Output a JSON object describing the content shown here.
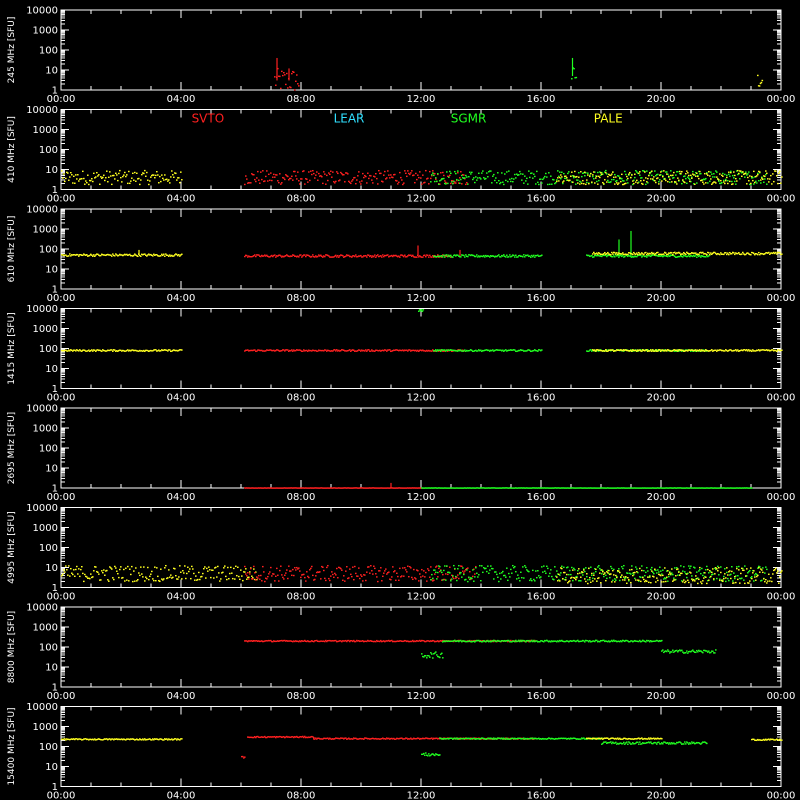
{
  "chart_data": {
    "type": "scatter",
    "x_ticks": [
      "00:00",
      "04:00",
      "08:00",
      "12:00",
      "16:00",
      "20:00",
      "00:00"
    ],
    "y_ticks": [
      "1",
      "10",
      "100",
      "1000",
      "10000"
    ],
    "unit_label": "[SFU]",
    "legend": [
      {
        "name": "SVTO",
        "color": "#ff2020"
      },
      {
        "name": "LEAR",
        "color": "#30e0ff"
      },
      {
        "name": "SGMR",
        "color": "#20ff20"
      },
      {
        "name": "PALE",
        "color": "#ffff20"
      }
    ],
    "panels": [
      {
        "freq_label": "245 MHz",
        "segments": [
          {
            "station": "SVTO",
            "from": 7.1,
            "to": 7.9,
            "level": 3,
            "noise": 0.6,
            "spikes": [
              [
                7.2,
                40
              ],
              [
                7.6,
                12
              ]
            ]
          },
          {
            "station": "SGMR",
            "from": 17.0,
            "to": 17.15,
            "level": 5,
            "noise": 0.5,
            "spikes": [
              [
                17.05,
                40
              ]
            ]
          },
          {
            "station": "PALE",
            "from": 23.2,
            "to": 23.35,
            "level": 3,
            "noise": 0.4,
            "spikes": []
          }
        ]
      },
      {
        "freq_label": "410 MHz",
        "segments": [
          {
            "station": "PALE",
            "from": 0.0,
            "to": 4.0,
            "level": 4,
            "noise": 0.35,
            "spikes": []
          },
          {
            "station": "SVTO",
            "from": 6.1,
            "to": 13.5,
            "level": 4,
            "noise": 0.35,
            "spikes": []
          },
          {
            "station": "SGMR",
            "from": 12.3,
            "to": 23.5,
            "level": 4,
            "noise": 0.35,
            "spikes": []
          },
          {
            "station": "PALE",
            "from": 16.5,
            "to": 24.0,
            "level": 4,
            "noise": 0.35,
            "spikes": []
          }
        ]
      },
      {
        "freq_label": "610 MHz",
        "segments": [
          {
            "station": "PALE",
            "from": 0.0,
            "to": 4.0,
            "level": 50,
            "noise": 0.06,
            "spikes": [
              [
                2.6,
                90
              ]
            ]
          },
          {
            "station": "SVTO",
            "from": 6.1,
            "to": 13.0,
            "level": 45,
            "noise": 0.06,
            "spikes": [
              [
                11.9,
                150
              ],
              [
                13.3,
                90
              ]
            ]
          },
          {
            "station": "SGMR",
            "from": 12.4,
            "to": 16.0,
            "level": 45,
            "noise": 0.06,
            "spikes": []
          },
          {
            "station": "SGMR",
            "from": 17.5,
            "to": 21.6,
            "level": 45,
            "noise": 0.06,
            "spikes": [
              [
                19.0,
                800
              ],
              [
                18.6,
                300
              ]
            ]
          },
          {
            "station": "PALE",
            "from": 17.7,
            "to": 24.0,
            "level": 60,
            "noise": 0.06,
            "spikes": []
          }
        ]
      },
      {
        "freq_label": "1415 MHz",
        "segments": [
          {
            "station": "PALE",
            "from": 0.0,
            "to": 4.0,
            "level": 80,
            "noise": 0.04,
            "spikes": []
          },
          {
            "station": "SVTO",
            "from": 6.1,
            "to": 13.4,
            "level": 80,
            "noise": 0.04,
            "spikes": []
          },
          {
            "station": "SGMR",
            "from": 11.9,
            "to": 12.05,
            "level": 8000,
            "noise": 0.05,
            "spikes": []
          },
          {
            "station": "SGMR",
            "from": 12.4,
            "to": 16.0,
            "level": 80,
            "noise": 0.04,
            "spikes": []
          },
          {
            "station": "SGMR",
            "from": 17.5,
            "to": 21.5,
            "level": 80,
            "noise": 0.04,
            "spikes": []
          },
          {
            "station": "PALE",
            "from": 17.7,
            "to": 24.0,
            "level": 80,
            "noise": 0.04,
            "spikes": []
          }
        ]
      },
      {
        "freq_label": "2695 MHz",
        "segments": [
          {
            "station": "SVTO",
            "from": 6.1,
            "to": 12.0,
            "level": 1,
            "noise": 0.01,
            "spikes": [
              [
                11.0,
                1.8
              ]
            ]
          },
          {
            "station": "SGMR",
            "from": 12.0,
            "to": 23.0,
            "level": 1,
            "noise": 0.01,
            "spikes": []
          }
        ]
      },
      {
        "freq_label": "4995 MHz",
        "segments": [
          {
            "station": "PALE",
            "from": 0.0,
            "to": 6.5,
            "level": 5,
            "noise": 0.4,
            "spikes": []
          },
          {
            "station": "SVTO",
            "from": 6.1,
            "to": 13.8,
            "level": 5,
            "noise": 0.4,
            "spikes": []
          },
          {
            "station": "SGMR",
            "from": 12.3,
            "to": 23.5,
            "level": 5,
            "noise": 0.4,
            "spikes": []
          },
          {
            "station": "PALE",
            "from": 16.5,
            "to": 24.0,
            "level": 4,
            "noise": 0.4,
            "spikes": []
          }
        ]
      },
      {
        "freq_label": "8800 MHz",
        "segments": [
          {
            "station": "SVTO",
            "from": 6.1,
            "to": 15.8,
            "level": 200,
            "noise": 0.03,
            "spikes": []
          },
          {
            "station": "SGMR",
            "from": 12.0,
            "to": 12.7,
            "level": 40,
            "noise": 0.15,
            "spikes": []
          },
          {
            "station": "SGMR",
            "from": 12.7,
            "to": 20.0,
            "level": 200,
            "noise": 0.04,
            "spikes": []
          },
          {
            "station": "SGMR",
            "from": 20.0,
            "to": 21.8,
            "level": 60,
            "noise": 0.08,
            "spikes": []
          }
        ]
      },
      {
        "freq_label": "15400 MHz",
        "segments": [
          {
            "station": "PALE",
            "from": 0.0,
            "to": 4.0,
            "level": 230,
            "noise": 0.03,
            "spikes": []
          },
          {
            "station": "SVTO",
            "from": 6.0,
            "to": 6.1,
            "level": 30,
            "noise": 0.05,
            "spikes": []
          },
          {
            "station": "SVTO",
            "from": 6.2,
            "to": 8.4,
            "level": 300,
            "noise": 0.03,
            "spikes": []
          },
          {
            "station": "SVTO",
            "from": 8.4,
            "to": 15.8,
            "level": 250,
            "noise": 0.03,
            "spikes": []
          },
          {
            "station": "SGMR",
            "from": 12.0,
            "to": 12.6,
            "level": 40,
            "noise": 0.08,
            "spikes": []
          },
          {
            "station": "SGMR",
            "from": 12.6,
            "to": 18.0,
            "level": 250,
            "noise": 0.03,
            "spikes": []
          },
          {
            "station": "SGMR",
            "from": 18.0,
            "to": 21.5,
            "level": 150,
            "noise": 0.06,
            "spikes": []
          },
          {
            "station": "PALE",
            "from": 17.5,
            "to": 20.0,
            "level": 250,
            "noise": 0.03,
            "spikes": []
          },
          {
            "station": "PALE",
            "from": 23.0,
            "to": 24.0,
            "level": 220,
            "noise": 0.03,
            "spikes": []
          }
        ]
      }
    ]
  }
}
